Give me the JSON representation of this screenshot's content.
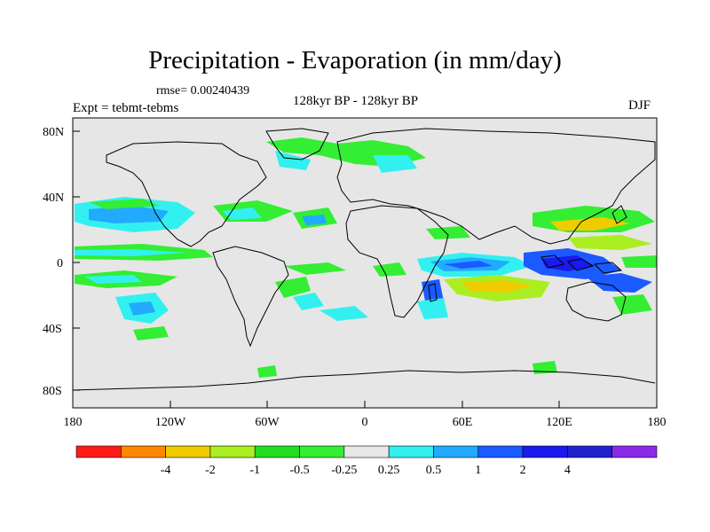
{
  "title": "Precipitation - Evaporation (in mm/day)",
  "rmse": "rmse= 0.00240439",
  "expt": "Expt = tebmt-tebms",
  "period": "128kyr BP - 128kyr BP",
  "season": "DJF",
  "y_ticks": [
    "80N",
    "40N",
    "0",
    "40S",
    "80S"
  ],
  "x_ticks": [
    "180",
    "120W",
    "60W",
    "0",
    "60E",
    "120E",
    "180"
  ],
  "colorbar": {
    "colors": [
      "#ff1a1a",
      "#ff8800",
      "#eecc00",
      "#aaee22",
      "#22dd22",
      "#33ee33",
      "#e8e8e8",
      "#33f0f0",
      "#22aaff",
      "#1a5aff",
      "#1a1aee",
      "#2222cc",
      "#8a2ae6"
    ],
    "labels": [
      "-4",
      "-2",
      "-1",
      "-0.5",
      "-0.25",
      "0.25",
      "0.5",
      "1",
      "2",
      "4"
    ]
  },
  "colors": {
    "ocean_bg": "#e6e6e6",
    "coast": "#000000"
  }
}
